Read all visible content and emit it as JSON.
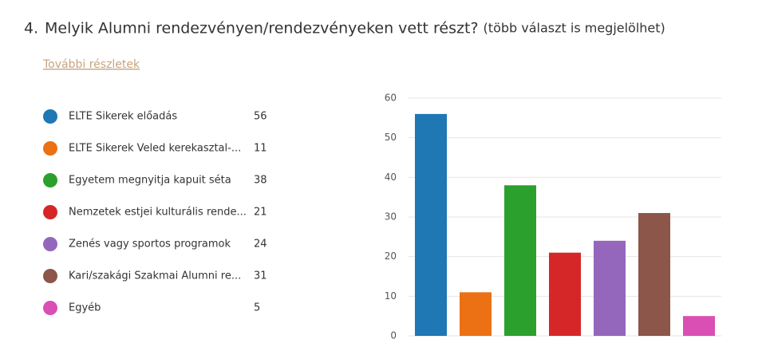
{
  "chart_data": {
    "type": "bar",
    "question_number": "4.",
    "title": "Melyik Alumni rendezvényen/rendezvényeken vett részt?",
    "subtitle": "(több választ is megjelölhet)",
    "link": "További részletek",
    "categories": [
      "ELTE Sikerek előadás",
      "ELTE Sikerek Veled kerekasztal-...",
      "Egyetem megnyitja kapuit séta",
      "Nemzetek estjei kulturális rende...",
      "Zenés vagy sportos programok",
      "Kari/szakági Szakmai Alumni re...",
      "Egyéb"
    ],
    "values": [
      56,
      11,
      38,
      21,
      24,
      31,
      5
    ],
    "colors": [
      "#1f77b4",
      "#ec7014",
      "#2ca02c",
      "#d62728",
      "#9467bd",
      "#8c564b",
      "#d94fb4"
    ],
    "ylim": [
      0,
      60
    ],
    "yticks": [
      0,
      10,
      20,
      30,
      40,
      50,
      60
    ],
    "grid": true
  }
}
